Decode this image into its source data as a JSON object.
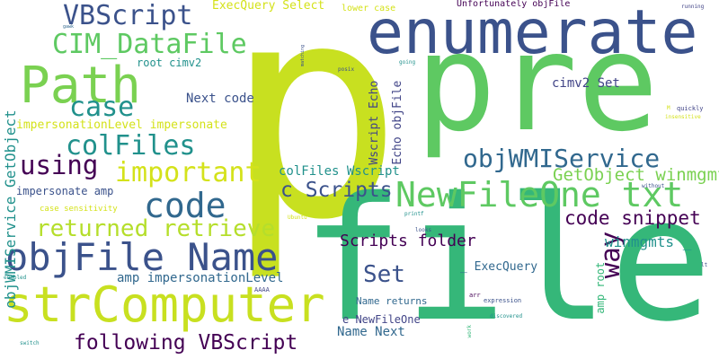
{
  "palette": {
    "dark_purple": "#440154",
    "indigo": "#3b528b",
    "slate_blue": "#414487",
    "steel": "#31688e",
    "teal": "#21918c",
    "sea_green": "#2a9d8f",
    "green": "#35b779",
    "light_green": "#5ec962",
    "yellow_green": "#b5de2b",
    "lime": "#c8e020",
    "yellow": "#d4e21a"
  },
  "words": [
    {
      "id": "p",
      "text": "p",
      "color": "#c8e020"
    },
    {
      "id": "pre",
      "text": "pre",
      "color": "#5ec962"
    },
    {
      "id": "file",
      "text": "file",
      "color": "#35b779"
    },
    {
      "id": "enumerate",
      "text": "enumerate",
      "color": "#3b528b"
    },
    {
      "id": "strComputer",
      "text": "strComputer",
      "color": "#c8e020"
    },
    {
      "id": "objFile-Name",
      "text": "objFile Name",
      "color": "#3b528b"
    },
    {
      "id": "Path",
      "text": "Path",
      "color": "#7ad151"
    },
    {
      "id": "NewFileOne-txt",
      "text": "NewFileOne txt",
      "color": "#5ec962"
    },
    {
      "id": "code",
      "text": "code",
      "color": "#31688e"
    },
    {
      "id": "CIM_DataFile",
      "text": "CIM_DataFile",
      "color": "#5ec962"
    },
    {
      "id": "VBScript",
      "text": "VBScript",
      "color": "#3b528b"
    },
    {
      "id": "case",
      "text": "case",
      "color": "#21918c"
    },
    {
      "id": "colFiles",
      "text": "colFiles",
      "color": "#21918c"
    },
    {
      "id": "important",
      "text": "important",
      "color": "#d4e21a"
    },
    {
      "id": "using",
      "text": "using",
      "color": "#440154"
    },
    {
      "id": "objWMIService",
      "text": "objWMIService",
      "color": "#31688e"
    },
    {
      "id": "returned-retrieve",
      "text": "returned retrieve",
      "color": "#b5de2b"
    },
    {
      "id": "following-VBScript",
      "text": "following VBScript",
      "color": "#440154"
    },
    {
      "id": "Set",
      "text": "Set",
      "color": "#3b528b"
    },
    {
      "id": "way",
      "text": "way",
      "color": "#440154"
    },
    {
      "id": "c-Scripts",
      "text": "c Scripts",
      "color": "#3b528b"
    },
    {
      "id": "objWMIService-GetObject",
      "text": "objWMIService GetObject",
      "color": "#21918c"
    },
    {
      "id": "code-snippet",
      "text": "code snippet",
      "color": "#440154"
    },
    {
      "id": "Scripts-folder",
      "text": "Scripts folder",
      "color": "#440154"
    },
    {
      "id": "GetObject-winmgmts",
      "text": "GetObject winmgmts",
      "color": "#7ad151"
    },
    {
      "id": "winmgmts-underscore",
      "text": "winmgmts _",
      "color": "#21918c"
    },
    {
      "id": "amp-impersonationLevel",
      "text": "amp impersonationLevel",
      "color": "#31688e"
    },
    {
      "id": "impersonationLevel-impersonate",
      "text": "impersonationLevel impersonate",
      "color": "#d4e21a"
    },
    {
      "id": "Wscript-Echo",
      "text": "Wscript Echo",
      "color": "#414487"
    },
    {
      "id": "Echo-objFile",
      "text": "Echo objFile",
      "color": "#414487"
    },
    {
      "id": "colFiles-Wscript",
      "text": "colFiles Wscript",
      "color": "#21918c"
    },
    {
      "id": "Name-Next",
      "text": "Name Next",
      "color": "#31688e"
    },
    {
      "id": "Next-code",
      "text": "Next code",
      "color": "#3b528b"
    },
    {
      "id": "cimv2-Set",
      "text": "cimv2 Set",
      "color": "#414487"
    },
    {
      "id": "root-cimv2",
      "text": "root cimv2",
      "color": "#21918c"
    },
    {
      "id": "ExecQuery-Select",
      "text": "ExecQuery Select",
      "color": "#d4e21a"
    },
    {
      "id": "underscore-ExecQuery",
      "text": "_ ExecQuery",
      "color": "#31688e"
    },
    {
      "id": "amp-root",
      "text": "amp root",
      "color": "#35b779"
    },
    {
      "id": "impersonate-amp",
      "text": "impersonate amp",
      "color": "#3b528b"
    },
    {
      "id": "e-NewFileOne",
      "text": "e NewFileOne",
      "color": "#414487"
    },
    {
      "id": "Name-returns",
      "text": "Name returns",
      "color": "#31688e"
    },
    {
      "id": "Unfortunately-objFile",
      "text": "Unfortunately objFile",
      "color": "#440154"
    },
    {
      "id": "lower-case",
      "text": "lower case",
      "color": "#d4e21a"
    },
    {
      "id": "case-sensitivity",
      "text": "case sensitivity",
      "color": "#d4e21a"
    },
    {
      "id": "running",
      "text": "running",
      "color": "#414487"
    },
    {
      "id": "gawk",
      "text": "gawk",
      "color": "#31688e"
    },
    {
      "id": "matching",
      "text": "matching",
      "color": "#3b528b"
    },
    {
      "id": "posix",
      "text": "posix",
      "color": "#3b528b"
    },
    {
      "id": "going",
      "text": "going",
      "color": "#21918c"
    },
    {
      "id": "quickly",
      "text": "quickly",
      "color": "#414487"
    },
    {
      "id": "insensitive",
      "text": "insensitive",
      "color": "#d4e21a"
    },
    {
      "id": "without",
      "text": "without",
      "color": "#3b528b"
    },
    {
      "id": "lt",
      "text": "lt",
      "color": "#3b528b"
    },
    {
      "id": "Ubuntu",
      "text": "Ubuntu",
      "color": "#d4e21a"
    },
    {
      "id": "printf",
      "text": "printf",
      "color": "#21918c"
    },
    {
      "id": "looks",
      "text": "looks",
      "color": "#3b528b"
    },
    {
      "id": "AAAA",
      "text": "AAAA",
      "color": "#414487"
    },
    {
      "id": "arr",
      "text": "arr",
      "color": "#440154"
    },
    {
      "id": "expression",
      "text": "expression",
      "color": "#3b528b"
    },
    {
      "id": "discovered",
      "text": "discovered",
      "color": "#21918c"
    },
    {
      "id": "work",
      "text": "work",
      "color": "#35b779"
    },
    {
      "id": "enabled",
      "text": "enabled",
      "color": "#21918c"
    },
    {
      "id": "switch",
      "text": "switch",
      "color": "#21918c"
    },
    {
      "id": "M",
      "text": "M",
      "color": "#d4e21a"
    }
  ]
}
